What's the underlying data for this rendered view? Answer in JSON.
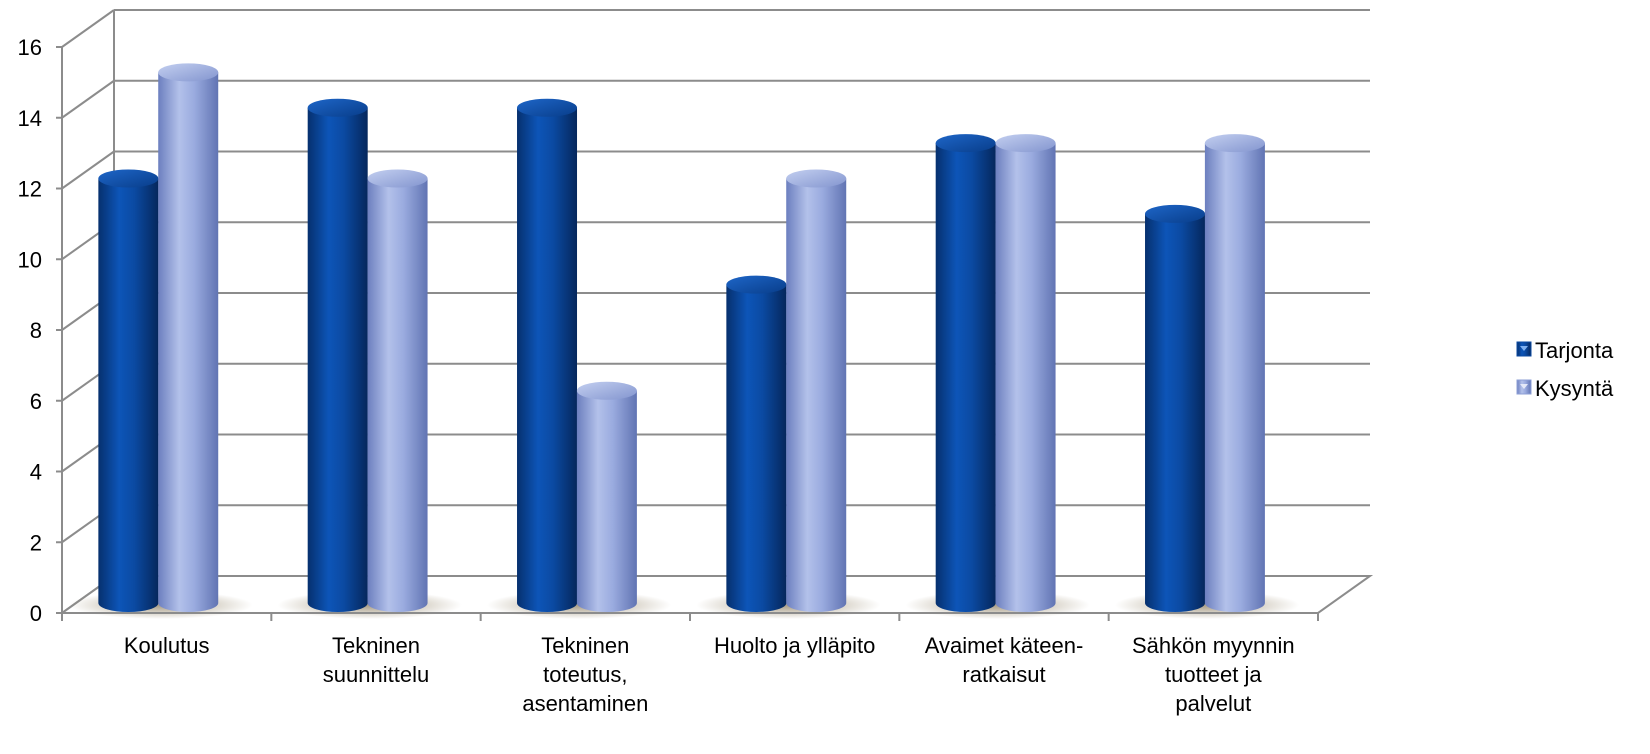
{
  "chart_data": {
    "type": "bar",
    "title": "",
    "xlabel": "",
    "ylabel": "",
    "ylim": [
      0,
      16
    ],
    "yticks": [
      0,
      2,
      4,
      6,
      8,
      10,
      12,
      14,
      16
    ],
    "grid": true,
    "legend_position": "right",
    "categories": [
      [
        "Koulutus"
      ],
      [
        "Tekninen",
        "suunnittelu"
      ],
      [
        "Tekninen",
        "toteutus,",
        "asentaminen"
      ],
      [
        "Huolto ja ylläpito"
      ],
      [
        "Avaimet käteen-",
        "ratkaisut"
      ],
      [
        "Sähkön myynnin",
        "tuotteet ja",
        "palvelut"
      ]
    ],
    "series": [
      {
        "name": "Tarjonta",
        "color": "#0b4aa2",
        "values": [
          12,
          14,
          14,
          9,
          13,
          11
        ]
      },
      {
        "name": "Kysyntä",
        "color": "#8d9fd6",
        "values": [
          15,
          12,
          6,
          12,
          13,
          13
        ]
      }
    ]
  }
}
